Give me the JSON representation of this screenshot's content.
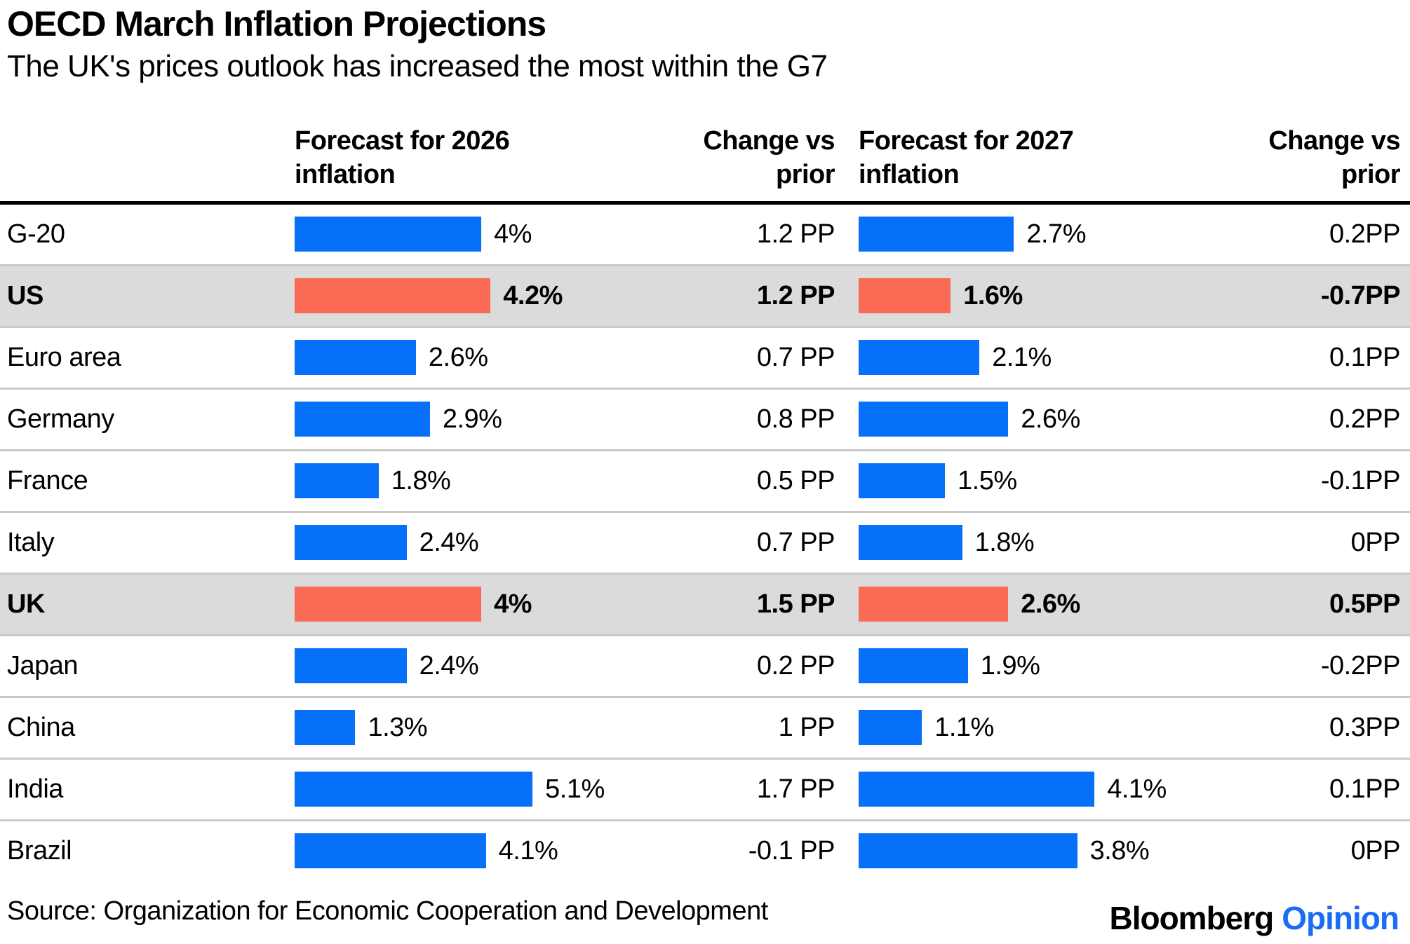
{
  "header": {
    "title": "OECD March Inflation Projections",
    "subtitle": "The UK's prices outlook has increased the most within the G7"
  },
  "table": {
    "columns": [
      {
        "line1": "Forecast for 2026",
        "line2": "inflation"
      },
      {
        "line1": "Change vs",
        "line2": "prior"
      },
      {
        "line1": "Forecast for 2027",
        "line2": "inflation"
      },
      {
        "line1": "Change vs",
        "line2": "prior"
      }
    ],
    "rows": [
      {
        "label": "G-20",
        "forecast_2026_pct": 4,
        "forecast_2026_label": "4%",
        "change_2026": "1.2 PP",
        "forecast_2027_pct": 2.7,
        "forecast_2027_label": "2.7%",
        "change_2027": "0.2PP",
        "highlighted": false
      },
      {
        "label": "US",
        "forecast_2026_pct": 4.2,
        "forecast_2026_label": "4.2%",
        "change_2026": "1.2 PP",
        "forecast_2027_pct": 1.6,
        "forecast_2027_label": "1.6%",
        "change_2027": "-0.7PP",
        "highlighted": true
      },
      {
        "label": "Euro area",
        "forecast_2026_pct": 2.6,
        "forecast_2026_label": "2.6%",
        "change_2026": "0.7 PP",
        "forecast_2027_pct": 2.1,
        "forecast_2027_label": "2.1%",
        "change_2027": "0.1PP",
        "highlighted": false
      },
      {
        "label": "Germany",
        "forecast_2026_pct": 2.9,
        "forecast_2026_label": "2.9%",
        "change_2026": "0.8 PP",
        "forecast_2027_pct": 2.6,
        "forecast_2027_label": "2.6%",
        "change_2027": "0.2PP",
        "highlighted": false
      },
      {
        "label": "France",
        "forecast_2026_pct": 1.8,
        "forecast_2026_label": "1.8%",
        "change_2026": "0.5 PP",
        "forecast_2027_pct": 1.5,
        "forecast_2027_label": "1.5%",
        "change_2027": "-0.1PP",
        "highlighted": false
      },
      {
        "label": "Italy",
        "forecast_2026_pct": 2.4,
        "forecast_2026_label": "2.4%",
        "change_2026": "0.7 PP",
        "forecast_2027_pct": 1.8,
        "forecast_2027_label": "1.8%",
        "change_2027": "0PP",
        "highlighted": false
      },
      {
        "label": "UK",
        "forecast_2026_pct": 4,
        "forecast_2026_label": "4%",
        "change_2026": "1.5 PP",
        "forecast_2027_pct": 2.6,
        "forecast_2027_label": "2.6%",
        "change_2027": "0.5PP",
        "highlighted": true
      },
      {
        "label": "Japan",
        "forecast_2026_pct": 2.4,
        "forecast_2026_label": "2.4%",
        "change_2026": "0.2 PP",
        "forecast_2027_pct": 1.9,
        "forecast_2027_label": "1.9%",
        "change_2027": "-0.2PP",
        "highlighted": false
      },
      {
        "label": "China",
        "forecast_2026_pct": 1.3,
        "forecast_2026_label": "1.3%",
        "change_2026": "1 PP",
        "forecast_2027_pct": 1.1,
        "forecast_2027_label": "1.1%",
        "change_2027": "0.3PP",
        "highlighted": false
      },
      {
        "label": "India",
        "forecast_2026_pct": 5.1,
        "forecast_2026_label": "5.1%",
        "change_2026": "1.7 PP",
        "forecast_2027_pct": 4.1,
        "forecast_2027_label": "4.1%",
        "change_2027": "0.1PP",
        "highlighted": false
      },
      {
        "label": "Brazil",
        "forecast_2026_pct": 4.1,
        "forecast_2026_label": "4.1%",
        "change_2026": "-0.1 PP",
        "forecast_2027_pct": 3.8,
        "forecast_2027_label": "3.8%",
        "change_2027": "0PP",
        "highlighted": false
      }
    ]
  },
  "footer": {
    "source": "Source: Organization for Economic Cooperation and Development",
    "brand": "Bloomberg",
    "brand_suffix": "Opinion"
  },
  "colors": {
    "bar_blue": "#0670f8",
    "bar_red": "#fb6a55",
    "highlight_bg": "#dbdbdb",
    "divider": "#c9c9c9",
    "opinion_blue": "#1a6df2"
  },
  "chart_data": {
    "type": "bar",
    "orientation": "horizontal",
    "title": "OECD March Inflation Projections",
    "subtitle": "The UK's prices outlook has increased the most within the G7",
    "categories": [
      "G-20",
      "US",
      "Euro area",
      "Germany",
      "France",
      "Italy",
      "UK",
      "Japan",
      "China",
      "India",
      "Brazil"
    ],
    "series": [
      {
        "name": "Forecast for 2026 inflation",
        "unit": "%",
        "values": [
          4,
          4.2,
          2.6,
          2.9,
          1.8,
          2.4,
          4,
          2.4,
          1.3,
          5.1,
          4.1
        ]
      },
      {
        "name": "Change vs prior (2026)",
        "unit": "PP",
        "values": [
          1.2,
          1.2,
          0.7,
          0.8,
          0.5,
          0.7,
          1.5,
          0.2,
          1,
          1.7,
          -0.1
        ]
      },
      {
        "name": "Forecast for 2027 inflation",
        "unit": "%",
        "values": [
          2.7,
          1.6,
          2.1,
          2.6,
          1.5,
          1.8,
          2.6,
          1.9,
          1.1,
          4.1,
          3.8
        ]
      },
      {
        "name": "Change vs prior (2027)",
        "unit": "PP",
        "values": [
          0.2,
          -0.7,
          0.1,
          0.2,
          -0.1,
          0,
          0.5,
          -0.2,
          0.3,
          0.1,
          0
        ]
      }
    ],
    "highlighted_categories": [
      "US",
      "UK"
    ],
    "bar_axis_range_2026": [
      0,
      5.1
    ],
    "bar_axis_range_2027": [
      0,
      4.1
    ],
    "grid": false,
    "legend_position": "none",
    "source": "Organization for Economic Cooperation and Development"
  }
}
